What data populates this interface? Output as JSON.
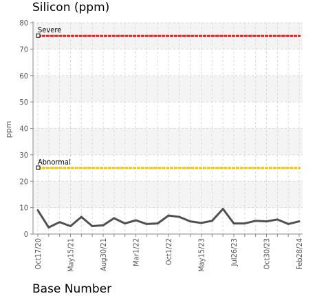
{
  "chart_data": {
    "type": "line",
    "title": "Silicon (ppm)",
    "xlabel": "Base Number",
    "ylabel": "ppm",
    "ylim": [
      0,
      80
    ],
    "yticks": [
      0,
      10,
      20,
      30,
      40,
      50,
      60,
      70,
      80
    ],
    "grid": true,
    "x_tick_labels": [
      "Oct17/20",
      "May15/21",
      "Aug30/21",
      "Mar1/22",
      "Oct1/22",
      "May15/23",
      "Jul26/23",
      "Oct30/23",
      "Feb28/24"
    ],
    "series": [
      {
        "values": [
          9,
          2.5,
          4.5,
          3,
          6.5,
          3,
          3.3,
          6,
          4,
          5.2,
          3.8,
          4,
          7,
          6.5,
          4.8,
          4.2,
          5,
          9.5,
          4,
          4,
          5,
          4.8,
          5.5,
          3.8,
          4.8
        ],
        "color": "#505050"
      }
    ],
    "thresholds": [
      {
        "label": "Severe",
        "value": 75,
        "color": "#e8211a"
      },
      {
        "label": "Abnormal",
        "value": 25,
        "color": "#f5c400"
      }
    ]
  }
}
